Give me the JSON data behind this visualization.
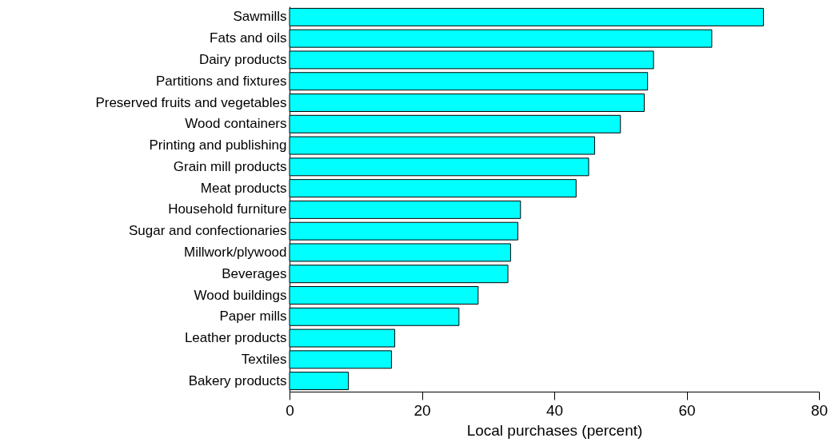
{
  "chart_data": {
    "type": "bar",
    "orientation": "horizontal",
    "xlabel": "Local purchases (percent)",
    "categories": [
      "Sawmills",
      "Fats and oils",
      "Dairy products",
      "Partitions and fixtures",
      "Preserved fruits and vegetables",
      "Wood containers",
      "Printing and publishing",
      "Grain mill products",
      "Meat products",
      "Household furniture",
      "Sugar and confectionaries",
      "Millwork/plywood",
      "Beverages",
      "Wood buildings",
      "Paper mills",
      "Leather products",
      "Textiles",
      "Bakery products"
    ],
    "values": [
      71.6,
      63.8,
      55.0,
      54.1,
      53.6,
      50.0,
      46.1,
      45.2,
      43.3,
      34.9,
      34.5,
      33.4,
      33.0,
      28.5,
      25.6,
      15.9,
      15.4,
      8.9
    ],
    "color": "#00ffff",
    "xlim": [
      0,
      80
    ],
    "xticks": [
      0,
      20,
      40,
      60,
      80
    ],
    "grid": false
  }
}
